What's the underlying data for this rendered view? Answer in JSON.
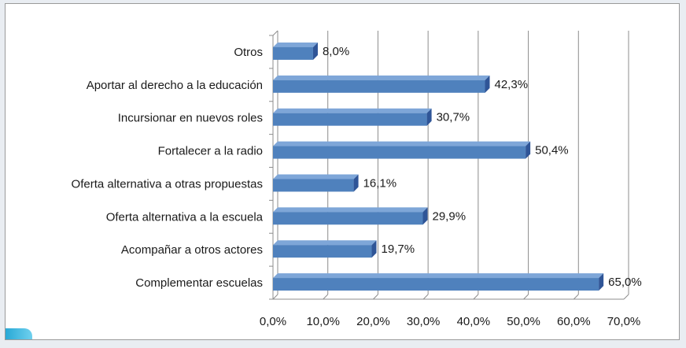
{
  "chart_data": {
    "type": "bar",
    "orientation": "horizontal",
    "categories": [
      "Otros",
      "Aportar al derecho a la educación",
      "Incursionar en nuevos roles",
      "Fortalecer a la radio",
      "Oferta alternativa a otras propuestas",
      "Oferta alternativa a la escuela",
      "Acompañar a otros actores",
      "Complementar escuelas"
    ],
    "values": [
      8.0,
      42.3,
      30.7,
      50.4,
      16.1,
      29.9,
      19.7,
      65.0
    ],
    "value_labels": [
      "8,0%",
      "42,3%",
      "30,7%",
      "50,4%",
      "16,1%",
      "29,9%",
      "19,7%",
      "65,0%"
    ],
    "xlim": [
      0,
      70
    ],
    "x_ticks": [
      0,
      10,
      20,
      30,
      40,
      50,
      60,
      70
    ],
    "x_tick_labels": [
      "0,0%",
      "10,0%",
      "20,0%",
      "30,0%",
      "40,0%",
      "50,0%",
      "60,0%",
      "70,0%"
    ],
    "title": "",
    "xlabel": "",
    "ylabel": "",
    "grid": true,
    "bar_color": "#4f81bd",
    "bar_side_color": "#2f5597",
    "bar_top_color": "#7ea6d8"
  }
}
